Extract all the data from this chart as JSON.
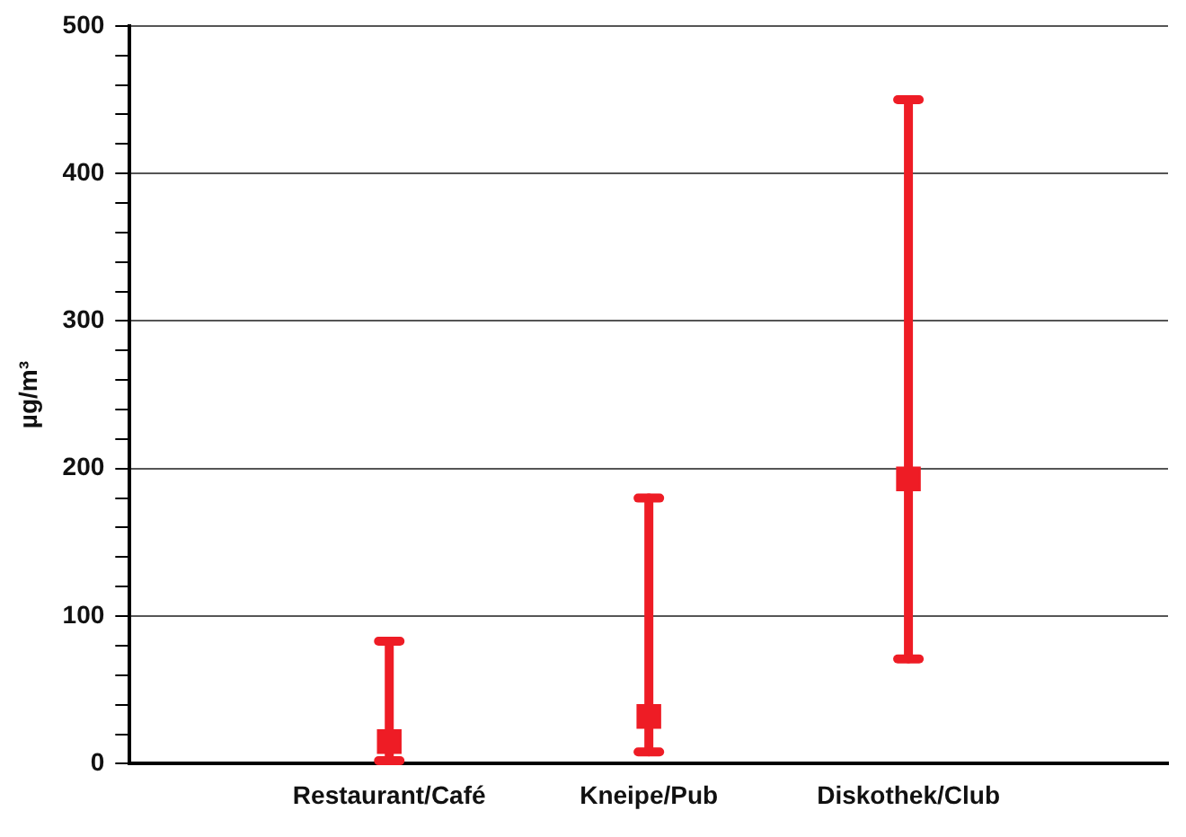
{
  "chart_data": {
    "type": "scatter",
    "ylabel": "µg/m³",
    "categories": [
      null,
      "Restaurant/Café",
      "Kneipe/Pub",
      "Diskothek/Club",
      null
    ],
    "series": [
      {
        "color": "#ee1c25",
        "values": [
          null,
          15,
          32,
          193,
          null
        ],
        "errors": [
          null,
          [
            2,
            83
          ],
          [
            8,
            180
          ],
          [
            71,
            450
          ],
          null
        ]
      }
    ],
    "ylim": [
      0,
      500
    ],
    "yticks": [
      0,
      {
        "value": 20,
        "label": null
      },
      {
        "value": 40,
        "label": null
      },
      {
        "value": 60,
        "label": null
      },
      {
        "value": 80,
        "label": null
      },
      100,
      {
        "value": 120,
        "label": null
      },
      {
        "value": 140,
        "label": null
      },
      {
        "value": 160,
        "label": null
      },
      {
        "value": 180,
        "label": null
      },
      200,
      {
        "value": 220,
        "label": null
      },
      {
        "value": 240,
        "label": null
      },
      {
        "value": 260,
        "label": null
      },
      {
        "value": 280,
        "label": null
      },
      300,
      {
        "value": 320,
        "label": null
      },
      {
        "value": 340,
        "label": null
      },
      {
        "value": 360,
        "label": null
      },
      {
        "value": 380,
        "label": null
      },
      400,
      {
        "value": 420,
        "label": null
      },
      {
        "value": 440,
        "label": null
      },
      {
        "value": 460,
        "label": null
      },
      {
        "value": 480,
        "label": null
      },
      500
    ],
    "grid": "y",
    "legend": false,
    "marker": "square"
  }
}
